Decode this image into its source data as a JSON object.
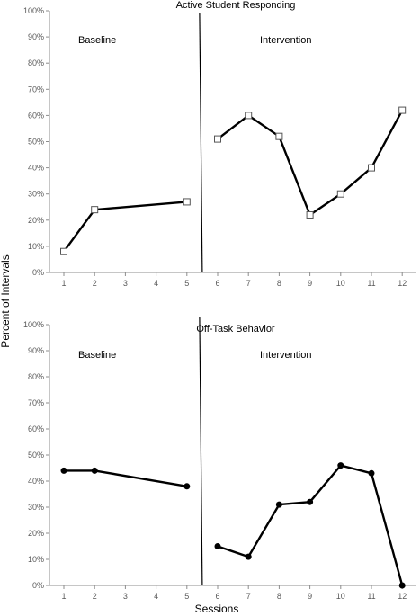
{
  "figure": {
    "ylabel": "Percent of Intervals",
    "xlabel": "Sessions"
  },
  "chart_data": [
    {
      "type": "line",
      "title": "Active Student Responding",
      "ylim": [
        0,
        100
      ],
      "yticks": [
        "0%",
        "10%",
        "20%",
        "30%",
        "40%",
        "50%",
        "60%",
        "70%",
        "80%",
        "90%",
        "100%"
      ],
      "categories": [
        "1",
        "2",
        "3",
        "4",
        "5",
        "6",
        "7",
        "8",
        "9",
        "10",
        "11",
        "12"
      ],
      "phases": [
        "Baseline",
        "Intervention"
      ],
      "phase_change_after_session": 5,
      "marker": "open-square",
      "series": [
        {
          "phase": "Baseline",
          "x": [
            1,
            2,
            5
          ],
          "y": [
            8,
            24,
            27
          ]
        },
        {
          "phase": "Intervention",
          "x": [
            6,
            7,
            8,
            9,
            10,
            11,
            12
          ],
          "y": [
            51,
            60,
            52,
            22,
            30,
            40,
            62
          ]
        }
      ]
    },
    {
      "type": "line",
      "title": "Off-Task Behavior",
      "ylim": [
        0,
        100
      ],
      "yticks": [
        "0%",
        "10%",
        "20%",
        "30%",
        "40%",
        "50%",
        "60%",
        "70%",
        "80%",
        "90%",
        "100%"
      ],
      "categories": [
        "1",
        "2",
        "3",
        "4",
        "5",
        "6",
        "7",
        "8",
        "9",
        "10",
        "11",
        "12"
      ],
      "phases": [
        "Baseline",
        "Intervention"
      ],
      "phase_change_after_session": 5,
      "marker": "filled-circle",
      "series": [
        {
          "phase": "Baseline",
          "x": [
            1,
            2,
            5
          ],
          "y": [
            44,
            44,
            38
          ]
        },
        {
          "phase": "Intervention",
          "x": [
            6,
            7,
            8,
            9,
            10,
            11,
            12
          ],
          "y": [
            15,
            11,
            31,
            32,
            46,
            43,
            0
          ]
        }
      ]
    }
  ]
}
